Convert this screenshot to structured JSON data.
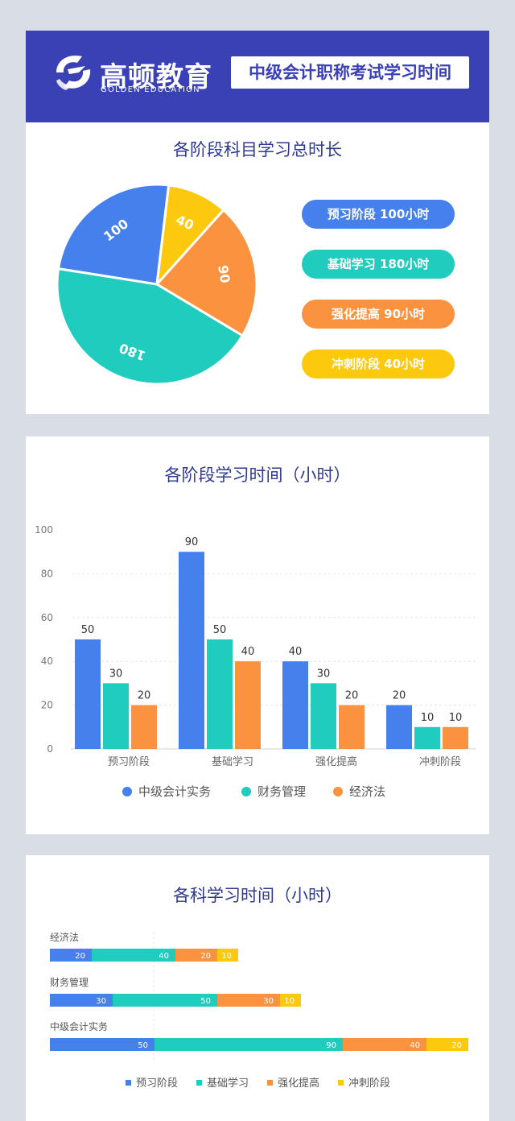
{
  "header": {
    "logo_cn": "高顿教育",
    "logo_en": "GOLDEN EDUCATION",
    "title": "中级会计职称考试学习时间"
  },
  "colors": {
    "header_bg": "#3a41b5",
    "blue": "#4580ec",
    "teal": "#20ccbe",
    "orange": "#fb9240",
    "yellow": "#fcc90f"
  },
  "chart_data": [
    {
      "type": "pie",
      "title": "各阶段科目学习总时长",
      "labels": [
        "预习阶段",
        "基础学习",
        "强化提高",
        "冲刺阶段"
      ],
      "values": [
        100,
        180,
        90,
        40
      ],
      "colors": [
        "#4580ec",
        "#20ccbe",
        "#fb9240",
        "#fcc90f"
      ],
      "legend": [
        "预习阶段  100小时",
        "基础学习 180小时",
        "强化提高  90小时",
        "冲刺阶段  40小时"
      ],
      "legend_position": "right"
    },
    {
      "type": "bar",
      "title": "各阶段学习时间（小时）",
      "categories": [
        "预习阶段",
        "基础学习",
        "强化提高",
        "冲刺阶段"
      ],
      "series": [
        {
          "name": "中级会计实务",
          "values": [
            50,
            90,
            40,
            20
          ],
          "color": "#4580ec"
        },
        {
          "name": "财务管理",
          "values": [
            30,
            50,
            30,
            10
          ],
          "color": "#20ccbe"
        },
        {
          "name": "经济法",
          "values": [
            20,
            40,
            20,
            10
          ],
          "color": "#fb9240"
        }
      ],
      "ylim": [
        0,
        100
      ],
      "yticks": [
        0,
        20,
        40,
        60,
        80,
        100
      ],
      "grid": true,
      "legend_position": "bottom"
    },
    {
      "type": "bar",
      "orientation": "horizontal",
      "stacked": true,
      "title": "各科学习时间（小时）",
      "categories": [
        "经济法",
        "财务管理",
        "中级会计实务"
      ],
      "series": [
        {
          "name": "预习阶段",
          "values": [
            20,
            30,
            50
          ],
          "color": "#4580ec"
        },
        {
          "name": "基础学习",
          "values": [
            40,
            50,
            90
          ],
          "color": "#20ccbe"
        },
        {
          "name": "强化提高",
          "values": [
            20,
            30,
            40
          ],
          "color": "#fb9240"
        },
        {
          "name": "冲刺阶段",
          "values": [
            10,
            10,
            20
          ],
          "color": "#fcc90f"
        }
      ],
      "legend_position": "bottom"
    }
  ]
}
